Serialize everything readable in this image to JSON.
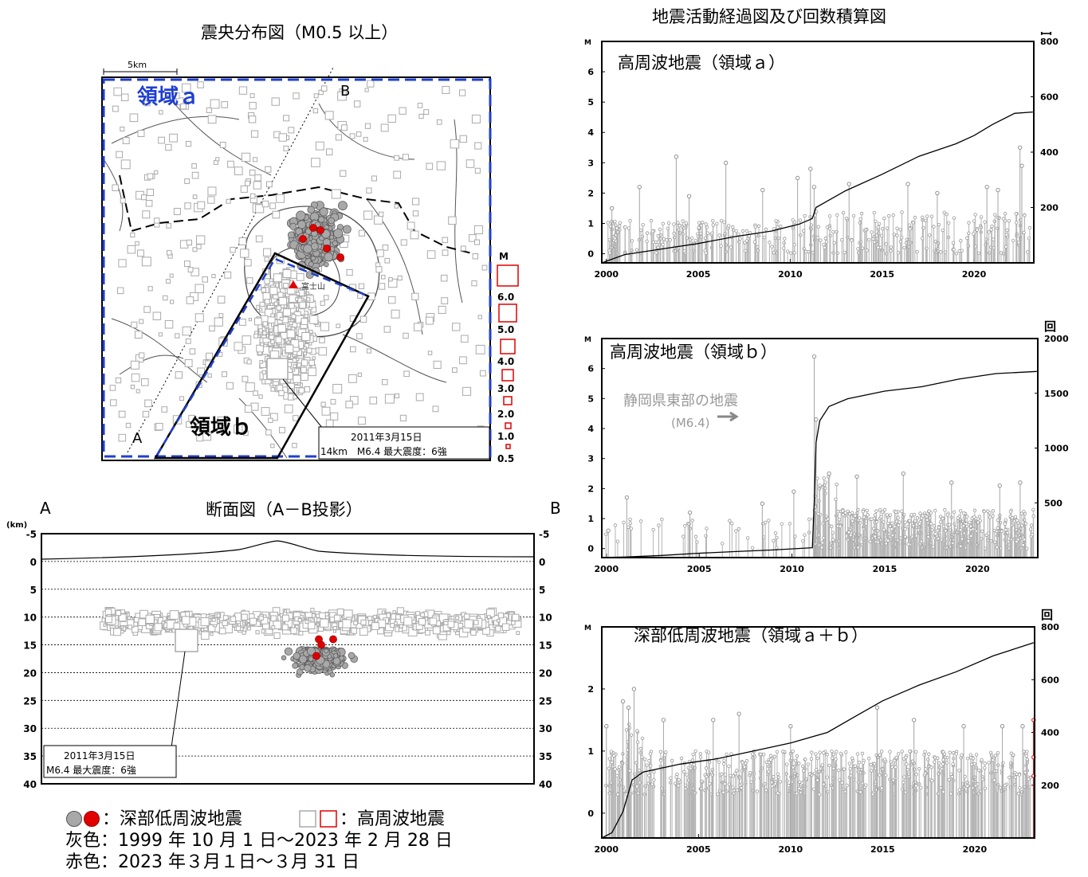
{
  "map": {
    "title": "震央分布図（M0.5 以上）",
    "scale_label": "5km",
    "region_a_label": "領域ａ",
    "region_b_label": "領域ｂ",
    "point_a": "A",
    "point_b": "B",
    "mountain_label": "富士山",
    "callout_line1": "2011年3月15日",
    "callout_line2": "14km　M6.4 最大震度：6強",
    "mag_scale_title": "M",
    "mag_scale_labels": [
      "6.0",
      "5.0",
      "4.0",
      "3.0",
      "2.0",
      "1.0",
      "0.5"
    ]
  },
  "section": {
    "title": "断面図（A－B投影）",
    "left_label": "A",
    "right_label": "B",
    "unit": "(km)",
    "depth_ticks": [
      "-5",
      "0",
      "5",
      "10",
      "15",
      "20",
      "25",
      "30",
      "35",
      "40"
    ],
    "callout_line1": "2011年3月15日",
    "callout_line2": "M6.4 最大震度：6強"
  },
  "timeseries_title": "地震活動経過図及び回数積算図",
  "legend": {
    "line1_deep": "：深部低周波地震",
    "line1_high": "：高周波地震",
    "line2": "灰色：1999 年 10 月 1 日～2023 年 2 月 28 日",
    "line3": "赤色：2023 年３月１日～３月 31 日"
  },
  "colors": {
    "gray_event": "#a8a8a8",
    "red_event": "#e00000",
    "region_a_border": "#1f3fd0",
    "region_a_text": "#1f3fd0"
  },
  "chart_data": [
    {
      "type": "line",
      "title": "高周波地震（領域ａ）",
      "ylabel_left": "M",
      "ylabel_right": "回",
      "x_ticks": [
        "2000",
        "2005",
        "2010",
        "2015",
        "2020"
      ],
      "xlim": [
        1999.75,
        2023.25
      ],
      "ylim_left": [
        -0.3,
        7
      ],
      "ylim_right": [
        0,
        800
      ],
      "left_ticks": [
        "0",
        "1",
        "2",
        "3",
        "4",
        "5",
        "6"
      ],
      "right_ticks": [
        "200",
        "400",
        "600",
        "800"
      ],
      "series": [
        {
          "kind": "cumulative",
          "x": [
            1999.75,
            2001,
            2003,
            2005,
            2007,
            2009,
            2010.5,
            2011.2,
            2011.4,
            2013,
            2015,
            2017,
            2019,
            2020,
            2021,
            2022.2,
            2023.2
          ],
          "y": [
            0,
            30,
            50,
            70,
            95,
            115,
            140,
            160,
            200,
            260,
            320,
            385,
            430,
            460,
            500,
            540,
            545
          ]
        },
        {
          "kind": "magnitude_peaks",
          "x": [
            2000.3,
            2001.8,
            2003.8,
            2004.5,
            2006.5,
            2008.5,
            2010.4,
            2011.1,
            2011.3,
            2013.2,
            2016.4,
            2018.0,
            2020.7,
            2021.3,
            2022.5,
            2022.6
          ],
          "y": [
            1.5,
            2.2,
            3.2,
            1.9,
            3.0,
            2.1,
            2.5,
            2.8,
            2.2,
            2.3,
            2.3,
            2.0,
            2.2,
            2.1,
            3.5,
            2.9
          ]
        }
      ]
    },
    {
      "type": "line",
      "title": "高周波地震（領域ｂ）",
      "ylabel_left": "M",
      "ylabel_right": "回",
      "annotation": "静岡県東部の地震",
      "annotation_sub": "(M6.4)",
      "x_ticks": [
        "2000",
        "2005",
        "2010",
        "2015",
        "2020"
      ],
      "xlim": [
        1999.75,
        2023.25
      ],
      "ylim_left": [
        -0.3,
        7
      ],
      "ylim_right": [
        0,
        2000
      ],
      "left_ticks": [
        "0",
        "1",
        "2",
        "3",
        "4",
        "5",
        "6"
      ],
      "right_ticks": [
        "500",
        "1000",
        "1500",
        "2000"
      ],
      "series": [
        {
          "kind": "cumulative",
          "x": [
            1999.75,
            2001,
            2003,
            2005,
            2007,
            2009,
            2011.1,
            2011.2,
            2011.3,
            2011.5,
            2012,
            2013,
            2015,
            2017,
            2019,
            2021,
            2023.2
          ],
          "y": [
            0,
            5,
            20,
            40,
            55,
            70,
            90,
            500,
            1050,
            1250,
            1380,
            1450,
            1520,
            1560,
            1630,
            1680,
            1700
          ]
        },
        {
          "kind": "magnitude_peaks",
          "x": [
            2000.1,
            2001.1,
            2004.5,
            2008.4,
            2010.1,
            2011.2,
            2011.3,
            2012.0,
            2013.5,
            2016.0,
            2018.6,
            2021.2,
            2022.3
          ],
          "y": [
            0.6,
            1.7,
            1.2,
            1.5,
            1.9,
            6.4,
            4.3,
            2.5,
            2.4,
            2.5,
            2.2,
            2.1,
            2.2
          ]
        }
      ]
    },
    {
      "type": "line",
      "title": "深部低周波地震（領域ａ＋ｂ）",
      "ylabel_left": "M",
      "ylabel_right": "回",
      "x_ticks": [
        "2000",
        "2005",
        "2010",
        "2015",
        "2020"
      ],
      "xlim": [
        1999.75,
        2023.25
      ],
      "ylim_left": [
        -0.4,
        3
      ],
      "ylim_right": [
        0,
        800
      ],
      "left_ticks": [
        "0",
        "1",
        "2"
      ],
      "right_ticks": [
        "200",
        "400",
        "600",
        "800"
      ],
      "series": [
        {
          "kind": "cumulative",
          "x": [
            1999.75,
            2000.3,
            2000.9,
            2001.4,
            2002,
            2004,
            2006,
            2008,
            2010,
            2012,
            2013.5,
            2015,
            2017,
            2019,
            2021,
            2023.2
          ],
          "y": [
            0,
            20,
            100,
            220,
            250,
            280,
            300,
            330,
            360,
            400,
            460,
            520,
            580,
            630,
            690,
            740
          ]
        },
        {
          "kind": "magnitude_peaks",
          "x": [
            2000.0,
            2000.9,
            2001.2,
            2001.5,
            2003.1,
            2005.8,
            2007.2,
            2010.0,
            2014.7,
            2016.7,
            2019.4,
            2021.5,
            2022.6
          ],
          "y": [
            1.4,
            1.8,
            1.7,
            2.0,
            1.5,
            1.5,
            1.6,
            1.4,
            1.7,
            1.5,
            1.4,
            1.4,
            1.4
          ]
        },
        {
          "kind": "recent_red",
          "x": [
            2023.2
          ],
          "y": [
            1.5
          ]
        }
      ]
    }
  ]
}
